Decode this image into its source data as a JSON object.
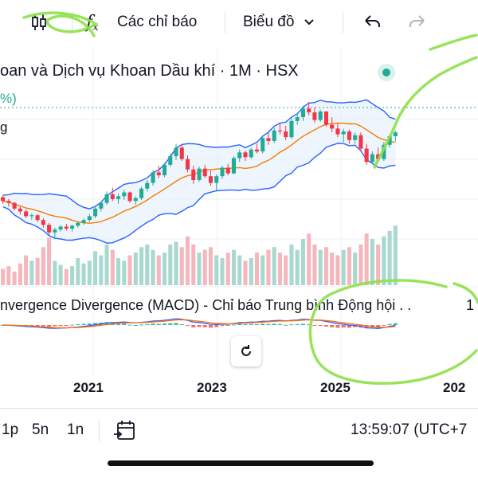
{
  "toolbar": {
    "indicators_label": "Các chỉ báo",
    "chart_type_label": "Biểu đồ"
  },
  "chart": {
    "title": "oan và Dịch vụ Khoan Dầu khí · 1M · HSX",
    "pct_fragment": "%)",
    "g_fragment": "g",
    "macd_label": "nvergence Divergence (MACD) - Chỉ báo Trung bình Động hội . .",
    "macd_right_fragment": "1",
    "years": [
      "2021",
      "2023",
      "2025",
      "202"
    ]
  },
  "bottombar": {
    "ranges": [
      "1p",
      "5n",
      "1n"
    ],
    "time": "13:59:07 (UTC+7"
  },
  "colors": {
    "up": "#22ab94",
    "down": "#f23645",
    "band": "#2962ff",
    "ma": "#f57c00",
    "scribble": "#8ee04a"
  },
  "icons": [
    "candles-icon",
    "fx-icon",
    "chevron-down-icon",
    "undo-icon",
    "redo-icon",
    "reset-icon",
    "date-range-icon"
  ],
  "chart_data": {
    "type": "candlestick",
    "interval": "1M",
    "x_ticks": [
      "2021",
      "2023",
      "2025"
    ],
    "note": "normalized price levels (0-100) read from visual; no price scale visible",
    "candles": [
      [
        62,
        64,
        55,
        58
      ],
      [
        58,
        60,
        52,
        56
      ],
      [
        56,
        57,
        48,
        50
      ],
      [
        50,
        52,
        44,
        47
      ],
      [
        47,
        49,
        40,
        42
      ],
      [
        42,
        45,
        38,
        43
      ],
      [
        43,
        44,
        36,
        38
      ],
      [
        38,
        40,
        30,
        33
      ],
      [
        33,
        35,
        22,
        25
      ],
      [
        25,
        30,
        18,
        28
      ],
      [
        28,
        33,
        26,
        31
      ],
      [
        31,
        34,
        27,
        29
      ],
      [
        29,
        33,
        26,
        32
      ],
      [
        32,
        36,
        30,
        35
      ],
      [
        35,
        40,
        33,
        38
      ],
      [
        38,
        44,
        36,
        42
      ],
      [
        42,
        52,
        40,
        50
      ],
      [
        50,
        58,
        47,
        56
      ],
      [
        56,
        68,
        54,
        65
      ],
      [
        65,
        72,
        58,
        60
      ],
      [
        60,
        66,
        55,
        63
      ],
      [
        63,
        70,
        59,
        67
      ],
      [
        67,
        68,
        56,
        58
      ],
      [
        58,
        63,
        54,
        61
      ],
      [
        61,
        73,
        59,
        71
      ],
      [
        71,
        80,
        68,
        77
      ],
      [
        77,
        90,
        74,
        88
      ],
      [
        88,
        95,
        82,
        85
      ],
      [
        85,
        98,
        83,
        96
      ],
      [
        96,
        108,
        94,
        105
      ],
      [
        105,
        118,
        101,
        114
      ],
      [
        114,
        118,
        100,
        102
      ],
      [
        102,
        106,
        88,
        91
      ],
      [
        91,
        95,
        76,
        80
      ],
      [
        80,
        94,
        78,
        92
      ],
      [
        92,
        96,
        82,
        84
      ],
      [
        84,
        90,
        74,
        77
      ],
      [
        77,
        86,
        69,
        84
      ],
      [
        84,
        95,
        81,
        93
      ],
      [
        93,
        97,
        85,
        87
      ],
      [
        87,
        105,
        86,
        103
      ],
      [
        103,
        112,
        99,
        109
      ],
      [
        109,
        111,
        100,
        104
      ],
      [
        104,
        114,
        102,
        112
      ],
      [
        112,
        118,
        108,
        110
      ],
      [
        110,
        126,
        108,
        124
      ],
      [
        124,
        130,
        117,
        121
      ],
      [
        121,
        135,
        119,
        132
      ],
      [
        132,
        140,
        128,
        131
      ],
      [
        131,
        137,
        122,
        125
      ],
      [
        125,
        145,
        123,
        142
      ],
      [
        142,
        150,
        138,
        146
      ],
      [
        146,
        158,
        142,
        155
      ],
      [
        155,
        162,
        148,
        151
      ],
      [
        151,
        156,
        140,
        143
      ],
      [
        143,
        154,
        141,
        152
      ],
      [
        152,
        152,
        136,
        138
      ],
      [
        138,
        146,
        130,
        134
      ],
      [
        134,
        140,
        125,
        128
      ],
      [
        128,
        134,
        120,
        131
      ],
      [
        131,
        133,
        118,
        122
      ],
      [
        122,
        130,
        118,
        127
      ],
      [
        127,
        130,
        110,
        113
      ],
      [
        113,
        118,
        96,
        99
      ],
      [
        99,
        110,
        97,
        107
      ],
      [
        107,
        114,
        99,
        102
      ],
      [
        102,
        120,
        100,
        117
      ],
      [
        117,
        128,
        114,
        126
      ],
      [
        126,
        132,
        121,
        130
      ]
    ],
    "volume": [
      12,
      14,
      10,
      16,
      22,
      18,
      20,
      28,
      35,
      18,
      15,
      12,
      14,
      20,
      16,
      18,
      25,
      22,
      30,
      26,
      20,
      18,
      22,
      24,
      28,
      30,
      26,
      22,
      24,
      30,
      32,
      28,
      36,
      30,
      24,
      26,
      28,
      22,
      20,
      24,
      26,
      22,
      18,
      20,
      24,
      22,
      26,
      28,
      24,
      22,
      30,
      26,
      34,
      38,
      30,
      26,
      28,
      24,
      22,
      26,
      28,
      24,
      30,
      38,
      34,
      30,
      36,
      40,
      44
    ]
  }
}
